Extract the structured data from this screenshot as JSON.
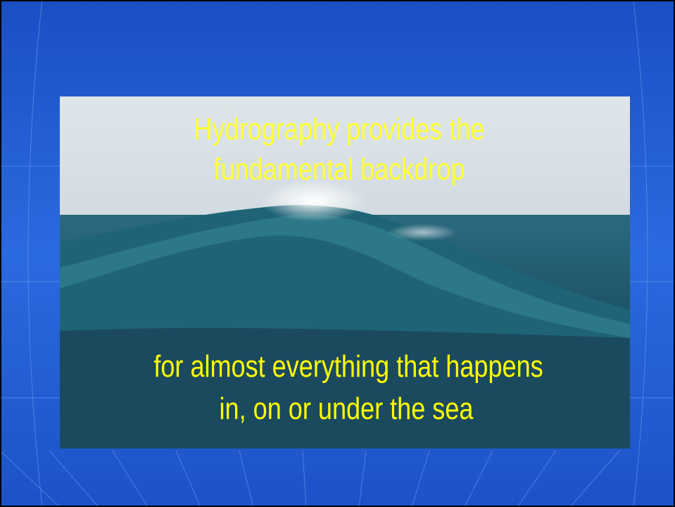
{
  "slide": {
    "heading": [
      "Hydrography provides the",
      "fundamental backdrop"
    ],
    "caption": [
      "for almost everything that happens",
      "in, on or under the sea"
    ]
  }
}
